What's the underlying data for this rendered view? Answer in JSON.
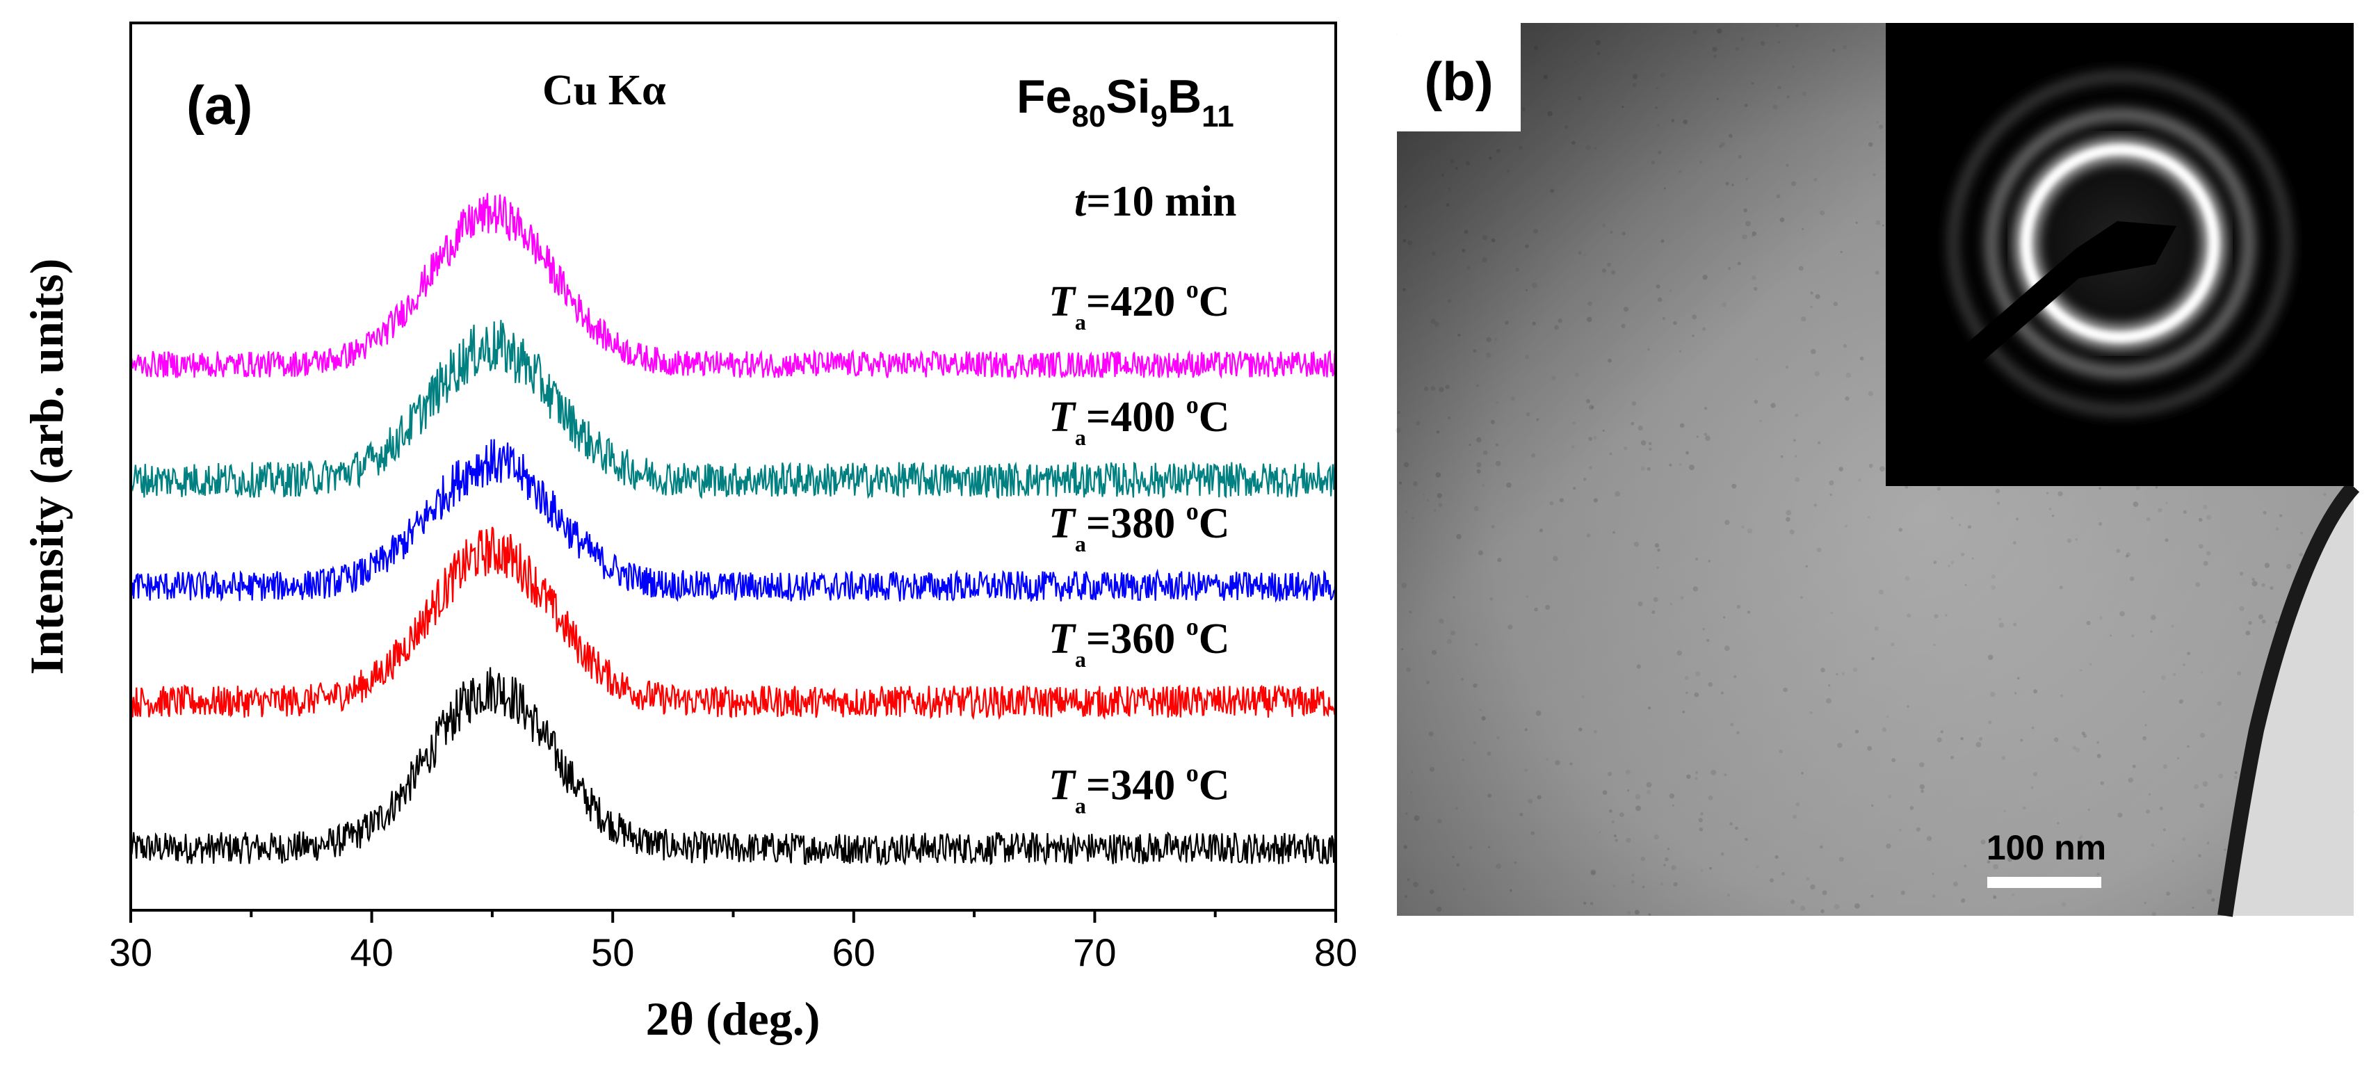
{
  "panel_a": {
    "label": "(a)",
    "radiation": "Cu Kα",
    "composition": {
      "fe": "Fe",
      "fe_sub": "80",
      "si": "Si",
      "si_sub": "9",
      "b": "B",
      "b_sub": "11"
    },
    "time": {
      "symbol": "t",
      "text": "=10 min"
    }
  },
  "panel_b": {
    "label": "(b)",
    "scale_bar_label": "100 nm",
    "scale_bar_length_nm": 100
  },
  "chart_data": {
    "type": "line",
    "title": "",
    "xlabel": "2θ (deg.)",
    "ylabel": "Intensity (arb. units)",
    "xlim": [
      30,
      80
    ],
    "ylim": [
      0,
      1
    ],
    "x_ticks": [
      "30",
      "40",
      "50",
      "60",
      "70",
      "80"
    ],
    "y_ticks": [],
    "grid": false,
    "legend": "none",
    "peak_position_2theta": 45,
    "peak_fwhm_2theta": 6,
    "series": [
      {
        "name": "Ta=340 °C",
        "label_T": "T",
        "label_sub": "a",
        "label_rest": "=340 ",
        "label_deg": "o",
        "label_unit": "C",
        "color": "#000000",
        "baseline": 0.07,
        "peak_height": 0.18,
        "noise": 0.018
      },
      {
        "name": "Ta=360 °C",
        "label_T": "T",
        "label_sub": "a",
        "label_rest": "=360 ",
        "label_deg": "o",
        "label_unit": "C",
        "color": "#ff0000",
        "baseline": 0.235,
        "peak_height": 0.17,
        "noise": 0.018
      },
      {
        "name": "Ta=380 °C",
        "label_T": "T",
        "label_sub": "a",
        "label_rest": "=380 ",
        "label_deg": "o",
        "label_unit": "C",
        "color": "#0000ff",
        "baseline": 0.365,
        "peak_height": 0.14,
        "noise": 0.017
      },
      {
        "name": "Ta=400 °C",
        "label_T": "T",
        "label_sub": "a",
        "label_rest": "=400 ",
        "label_deg": "o",
        "label_unit": "C",
        "color": "#008080",
        "baseline": 0.485,
        "peak_height": 0.15,
        "noise": 0.02
      },
      {
        "name": "Ta=420 °C",
        "label_T": "T",
        "label_sub": "a",
        "label_rest": "=420 ",
        "label_deg": "o",
        "label_unit": "C",
        "color": "#ff00ff",
        "baseline": 0.615,
        "peak_height": 0.17,
        "noise": 0.015
      }
    ]
  }
}
